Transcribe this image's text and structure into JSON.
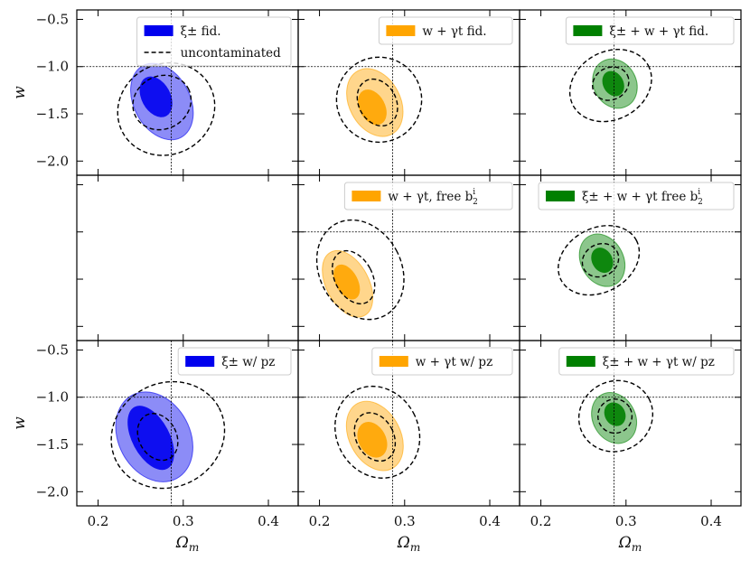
{
  "figure": {
    "fiducial": {
      "omega_m": 0.286,
      "w": -1.0
    }
  },
  "chart_data": {
    "type": "contour",
    "title": "",
    "xlabel": "Ωm",
    "ylabel": "w",
    "xlim": [
      0.175,
      0.435
    ],
    "ylim": [
      -2.15,
      -0.4
    ],
    "xticks": [
      "0.2",
      "0.3",
      "0.4"
    ],
    "xtick_values": [
      0.2,
      0.3,
      0.4
    ],
    "yticks": [
      "−0.5",
      "−1.0",
      "−1.5",
      "−2.0"
    ],
    "ytick_values": [
      -0.5,
      -1.0,
      -1.5,
      -2.0
    ],
    "grid": false,
    "legend_position": "top-right",
    "panels": [
      {
        "row": 1,
        "col": 1,
        "legend": [
          {
            "label": "ξ± fid.",
            "style": "filled",
            "color": "#0000ee"
          },
          {
            "label": "uncontaminated",
            "style": "dashed",
            "color": "#000000"
          }
        ],
        "filled": {
          "color": "#0000ee",
          "outer": {
            "center": [
              0.275,
              -1.37
            ],
            "semi_axes_data": [
              0.033,
              0.43
            ],
            "tilt_deg": 0
          },
          "inner": {
            "center": [
              0.268,
              -1.32
            ],
            "semi_axes_data": [
              0.017,
              0.23
            ],
            "tilt_deg": 0
          }
        },
        "reference": {
          "outer": {
            "center": [
              0.28,
              -1.45
            ],
            "semi_axes_data": [
              0.058,
              0.48
            ],
            "tilt_deg": 0
          },
          "inner": {
            "center": [
              0.275,
              -1.38
            ],
            "semi_axes_data": [
              0.035,
              0.28
            ],
            "tilt_deg": 0
          }
        }
      },
      {
        "row": 1,
        "col": 2,
        "legend": [
          {
            "label": "w + γt fid.",
            "style": "filled",
            "color": "#ffa500"
          }
        ],
        "filled": {
          "color": "#ffa500",
          "outer": {
            "center": [
              0.265,
              -1.38
            ],
            "semi_axes_data": [
              0.03,
              0.38
            ],
            "tilt_deg": 0
          },
          "inner": {
            "center": [
              0.262,
              -1.43
            ],
            "semi_axes_data": [
              0.015,
              0.2
            ],
            "tilt_deg": 0
          }
        },
        "reference": {
          "outer": {
            "center": [
              0.27,
              -1.35
            ],
            "semi_axes_data": [
              0.05,
              0.45
            ],
            "tilt_deg": 0
          },
          "inner": {
            "center": [
              0.268,
              -1.38
            ],
            "semi_axes_data": [
              0.022,
              0.26
            ],
            "tilt_deg": 0
          }
        }
      },
      {
        "row": 1,
        "col": 3,
        "legend": [
          {
            "label": "ξ± + w + γt fid.",
            "style": "filled",
            "color": "#008000"
          }
        ],
        "filled": {
          "color": "#008000",
          "outer": {
            "center": [
              0.287,
              -1.18
            ],
            "semi_axes_data": [
              0.025,
              0.27
            ],
            "tilt_deg": 0
          },
          "inner": {
            "center": [
              0.285,
              -1.18
            ],
            "semi_axes_data": [
              0.012,
              0.14
            ],
            "tilt_deg": 0
          }
        },
        "reference": {
          "outer": {
            "center": [
              0.282,
              -1.2
            ],
            "semi_axes_data": [
              0.05,
              0.36
            ],
            "tilt_deg": 0
          },
          "inner": {
            "center": [
              0.282,
              -1.18
            ],
            "semi_axes_data": [
              0.022,
              0.17
            ],
            "tilt_deg": 0
          }
        }
      },
      {
        "row": 2,
        "col": 1,
        "empty": true
      },
      {
        "row": 2,
        "col": 2,
        "legend": [
          {
            "label": "w + γt, free b",
            "sup": "i",
            "sub": "2",
            "style": "filled",
            "color": "#ffa500"
          }
        ],
        "filled": {
          "color": "#ffa500",
          "outer": {
            "center": [
              0.233,
              -1.55
            ],
            "semi_axes_data": [
              0.025,
              0.38
            ],
            "tilt_deg": 0
          },
          "inner": {
            "center": [
              0.232,
              -1.53
            ],
            "semi_axes_data": [
              0.013,
              0.2
            ],
            "tilt_deg": 0
          }
        },
        "reference": {
          "outer": {
            "center": [
              0.248,
              -1.4
            ],
            "semi_axes_data": [
              0.048,
              0.55
            ],
            "tilt_deg": 0
          },
          "inner": {
            "center": [
              0.24,
              -1.48
            ],
            "semi_axes_data": [
              0.022,
              0.3
            ],
            "tilt_deg": 0
          }
        }
      },
      {
        "row": 2,
        "col": 3,
        "legend": [
          {
            "label": "ξ± + w + γt free b",
            "sup": "i",
            "sub": "2",
            "style": "filled",
            "color": "#008000"
          }
        ],
        "filled": {
          "color": "#008000",
          "outer": {
            "center": [
              0.272,
              -1.3
            ],
            "semi_axes_data": [
              0.025,
              0.29
            ],
            "tilt_deg": 0
          },
          "inner": {
            "center": [
              0.272,
              -1.3
            ],
            "semi_axes_data": [
              0.012,
              0.14
            ],
            "tilt_deg": 0
          }
        },
        "reference": {
          "outer": {
            "center": [
              0.268,
              -1.3
            ],
            "semi_axes_data": [
              0.05,
              0.34
            ],
            "tilt_deg": 0
          },
          "inner": {
            "center": [
              0.27,
              -1.3
            ],
            "semi_axes_data": [
              0.022,
              0.17
            ],
            "tilt_deg": 0
          }
        }
      },
      {
        "row": 3,
        "col": 1,
        "legend": [
          {
            "label": "ξ± w/ pz",
            "style": "filled",
            "color": "#0000ee"
          }
        ],
        "filled": {
          "color": "#0000ee",
          "outer": {
            "center": [
              0.266,
              -1.42
            ],
            "semi_axes_data": [
              0.042,
              0.5
            ],
            "tilt_deg": 0
          },
          "inner": {
            "center": [
              0.262,
              -1.43
            ],
            "semi_axes_data": [
              0.022,
              0.37
            ],
            "tilt_deg": 0
          }
        },
        "reference": {
          "outer": {
            "center": [
              0.282,
              -1.4
            ],
            "semi_axes_data": [
              0.068,
              0.55
            ],
            "tilt_deg": 0
          },
          "inner": {
            "center": [
              0.27,
              -1.42
            ],
            "semi_axes_data": [
              0.022,
              0.26
            ],
            "tilt_deg": 0
          }
        }
      },
      {
        "row": 3,
        "col": 2,
        "legend": [
          {
            "label": "w + γt w/ pz",
            "style": "filled",
            "color": "#ffa500"
          }
        ],
        "filled": {
          "color": "#ffa500",
          "outer": {
            "center": [
              0.265,
              -1.41
            ],
            "semi_axes_data": [
              0.03,
              0.39
            ],
            "tilt_deg": 0
          },
          "inner": {
            "center": [
              0.262,
              -1.45
            ],
            "semi_axes_data": [
              0.016,
              0.2
            ],
            "tilt_deg": 0
          }
        },
        "reference": {
          "outer": {
            "center": [
              0.268,
              -1.37
            ],
            "semi_axes_data": [
              0.048,
              0.5
            ],
            "tilt_deg": 0
          },
          "inner": {
            "center": [
              0.265,
              -1.42
            ],
            "semi_axes_data": [
              0.022,
              0.27
            ],
            "tilt_deg": 0
          }
        }
      },
      {
        "row": 3,
        "col": 3,
        "legend": [
          {
            "label": "ξ± + w + γt w/ pz",
            "style": "filled",
            "color": "#008000"
          }
        ],
        "filled": {
          "color": "#008000",
          "outer": {
            "center": [
              0.286,
              -1.22
            ],
            "semi_axes_data": [
              0.025,
              0.28
            ],
            "tilt_deg": 0
          },
          "inner": {
            "center": [
              0.287,
              -1.18
            ],
            "semi_axes_data": [
              0.012,
              0.13
            ],
            "tilt_deg": 0
          }
        },
        "reference": {
          "outer": {
            "center": [
              0.288,
              -1.2
            ],
            "semi_axes_data": [
              0.044,
              0.37
            ],
            "tilt_deg": 0
          },
          "inner": {
            "center": [
              0.287,
              -1.2
            ],
            "semi_axes_data": [
              0.02,
              0.18
            ],
            "tilt_deg": 0
          }
        }
      }
    ]
  }
}
